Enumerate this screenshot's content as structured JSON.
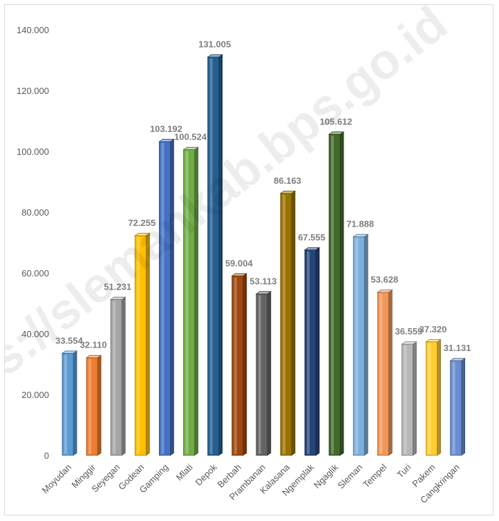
{
  "watermark": "https://slemankab.bps.go.id",
  "chart_data": {
    "type": "bar",
    "title": "",
    "xlabel": "",
    "ylabel": "",
    "ylim": [
      0,
      140000
    ],
    "yticks": [
      0,
      20000,
      40000,
      60000,
      80000,
      100000,
      120000,
      140000
    ],
    "ytick_labels": [
      "0",
      "20.000",
      "40.000",
      "60.000",
      "80.000",
      "100.000",
      "120.000",
      "140.000"
    ],
    "grid": false,
    "legend": "none",
    "categories": [
      "Moyudan",
      "Minggir",
      "Seyegan",
      "Godean",
      "Gamping",
      "Mlati",
      "Depok",
      "Berbah",
      "Prambanan",
      "Kalasana",
      "Ngemplak",
      "Ngaglik",
      "Sleman",
      "Tempel",
      "Turi",
      "Pakem",
      "Cangkringan"
    ],
    "values": [
      33554,
      32110,
      51231,
      72255,
      103192,
      100524,
      131005,
      59004,
      53113,
      86163,
      67555,
      105612,
      71888,
      53628,
      36559,
      37320,
      31131
    ],
    "data_labels": [
      "33.554",
      "32.110",
      "51.231",
      "72.255",
      "103.192",
      "100.524",
      "131.005",
      "59.004",
      "53.113",
      "86.163",
      "67.555",
      "105.612",
      "71.888",
      "53.628",
      "36.559",
      "37.320",
      "31.131"
    ],
    "colors": [
      "#5b9bd5",
      "#ed7d31",
      "#a5a5a5",
      "#ffc000",
      "#4472c4",
      "#70ad47",
      "#255e91",
      "#9e480e",
      "#636363",
      "#997300",
      "#264478",
      "#43682b",
      "#7cafdd",
      "#f1975a",
      "#b7b7b7",
      "#ffcd33",
      "#698ed0"
    ]
  }
}
